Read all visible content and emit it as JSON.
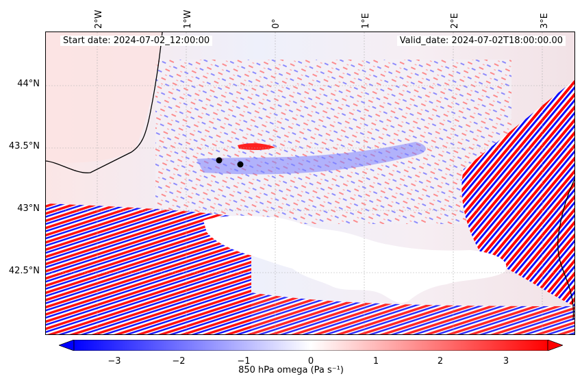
{
  "map": {
    "start_date": "Start date: 2024-07-02_12:00:00",
    "valid_date": "Valid_date: 2024-07-02T18:00:00.00",
    "lon_labels": [
      "2°W",
      "1°W",
      "0°",
      "1°E",
      "2°E",
      "3°E"
    ],
    "lat_labels": [
      "44°N",
      "43.5°N",
      "43°N",
      "42.5°N"
    ],
    "markers": 2
  },
  "colorbar": {
    "ticks": [
      "−3",
      "−2",
      "−1",
      "0",
      "1",
      "2",
      "3"
    ],
    "label": "850 hPa omega (Pa s⁻¹)",
    "min_color": "#0000ff",
    "mid_color": "#ffffff",
    "max_color": "#ff0000"
  }
}
